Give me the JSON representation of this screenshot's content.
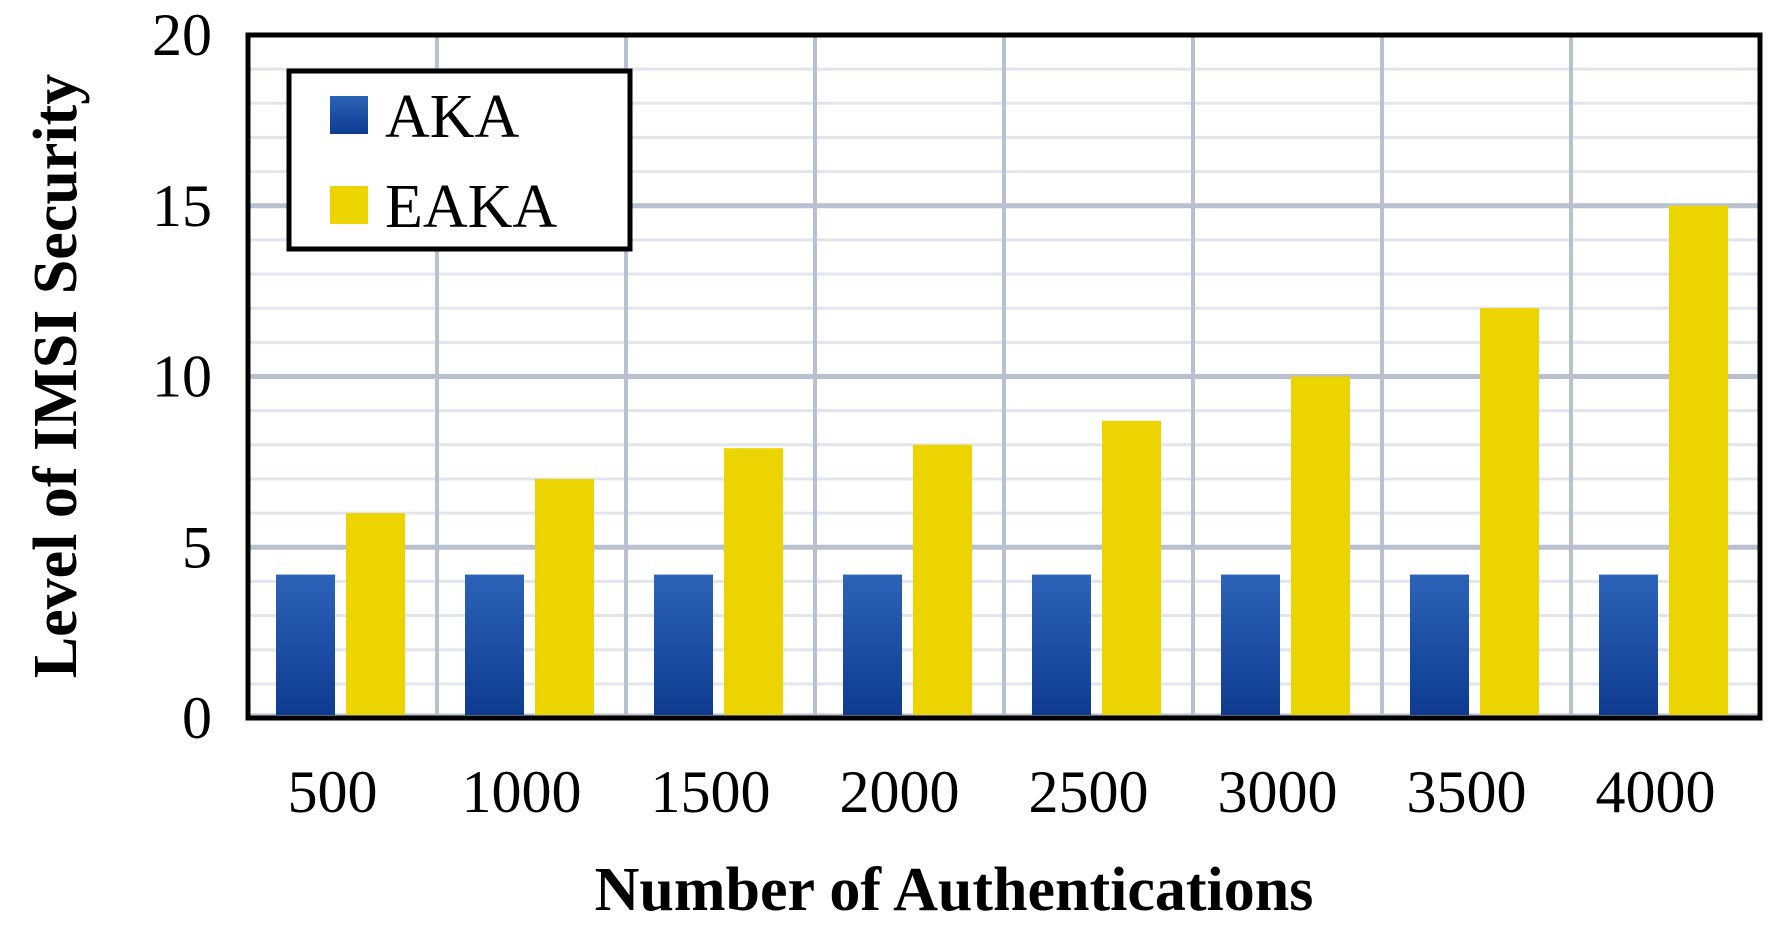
{
  "chart_data": {
    "type": "bar",
    "title": "",
    "xlabel": "Number of Authentications",
    "ylabel": "Level of IMSI Security",
    "categories": [
      "500",
      "1000",
      "1500",
      "2000",
      "2500",
      "3000",
      "3500",
      "4000"
    ],
    "series": [
      {
        "name": "AKA",
        "color": "#1a4aa0",
        "values": [
          4.2,
          4.2,
          4.2,
          4.2,
          4.2,
          4.2,
          4.2,
          4.2
        ]
      },
      {
        "name": "EAKA",
        "color": "#ecd400",
        "values": [
          6,
          7,
          7.9,
          8,
          8.7,
          10,
          12,
          15
        ]
      }
    ],
    "ylim": [
      0,
      20
    ],
    "yticks": [
      "0",
      "5",
      "10",
      "15",
      "20"
    ],
    "grid": true,
    "legend_position": "top-left"
  }
}
